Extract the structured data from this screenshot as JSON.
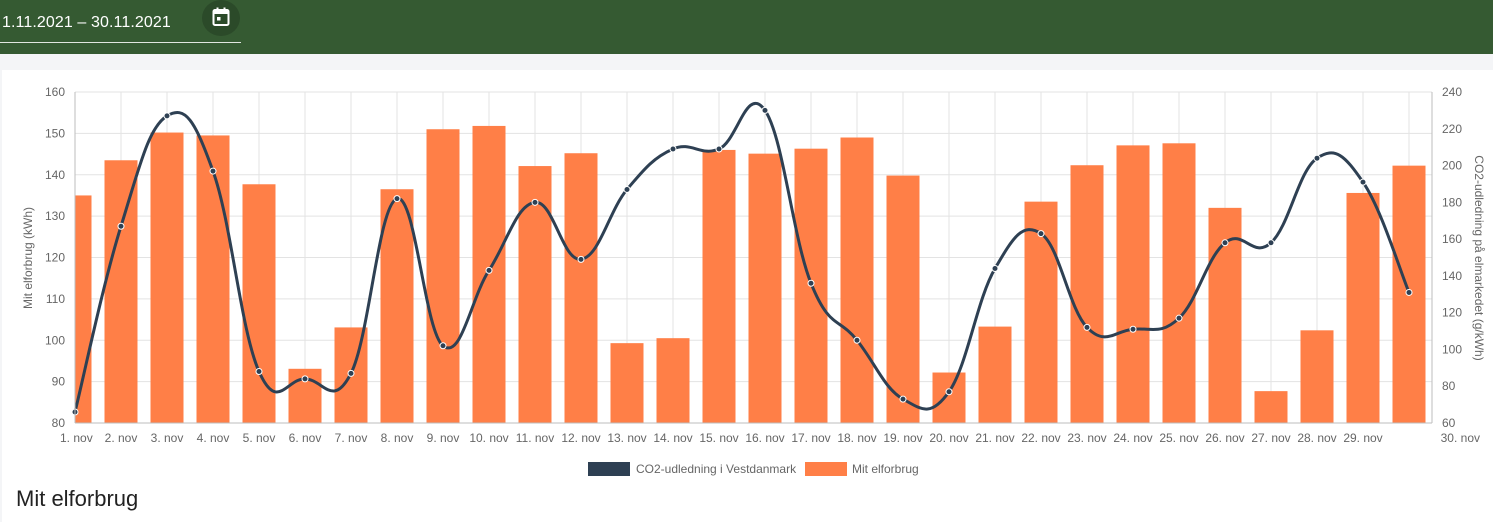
{
  "header": {
    "date_range": "1.11.2021 – 30.11.2021",
    "calendar_icon": "calendar-icon"
  },
  "section_title": "Mit elforbrug",
  "colors": {
    "topbar": "#355a32",
    "bar": "#ff7f47",
    "line": "#2e4053"
  },
  "chart_data": {
    "type": "bar",
    "categories": [
      "1. nov",
      "2. nov",
      "3. nov",
      "4. nov",
      "5. nov",
      "6. nov",
      "7. nov",
      "8. nov",
      "9. nov",
      "10. nov",
      "11. nov",
      "12. nov",
      "13. nov",
      "14. nov",
      "15. nov",
      "16. nov",
      "17. nov",
      "18. nov",
      "19. nov",
      "20. nov",
      "21. nov",
      "22. nov",
      "23. nov",
      "24. nov",
      "25. nov",
      "26. nov",
      "27. nov",
      "28. nov",
      "29. nov",
      "30. nov"
    ],
    "series": [
      {
        "name": "Mit elforbrug",
        "type": "bar",
        "axis": "left",
        "values": [
          135,
          143.5,
          150.2,
          149.5,
          137.7,
          93.1,
          103.1,
          136.5,
          151,
          151.8,
          142.1,
          145.2,
          99.3,
          100.5,
          146,
          145.1,
          146.3,
          149,
          139.8,
          92.2,
          103.3,
          133.5,
          142.3,
          147.1,
          147.6,
          132,
          87.7,
          102.4,
          135.6,
          142.2
        ]
      },
      {
        "name": "CO2-udledning i Vestdanmark",
        "type": "line",
        "axis": "right",
        "values": [
          66,
          167,
          227,
          197,
          88,
          84,
          87,
          182,
          102,
          143,
          180,
          149,
          187,
          209,
          209,
          230,
          136,
          105,
          73,
          77,
          144,
          163,
          112,
          111,
          117,
          158,
          158,
          204,
          191,
          131
        ]
      }
    ],
    "ylabel": "Mit elforbrug (kWh)",
    "y2label": "CO2-udledning på elmarkedet (g/kWh)",
    "ylim": [
      80,
      160
    ],
    "y2lim": [
      60,
      240
    ],
    "yticks": [
      160,
      150,
      140,
      130,
      120,
      110,
      100,
      90,
      80
    ],
    "y2ticks": [
      240,
      220,
      200,
      180,
      160,
      140,
      120,
      100,
      80,
      60
    ],
    "grid": true,
    "legend_position": "bottom"
  }
}
